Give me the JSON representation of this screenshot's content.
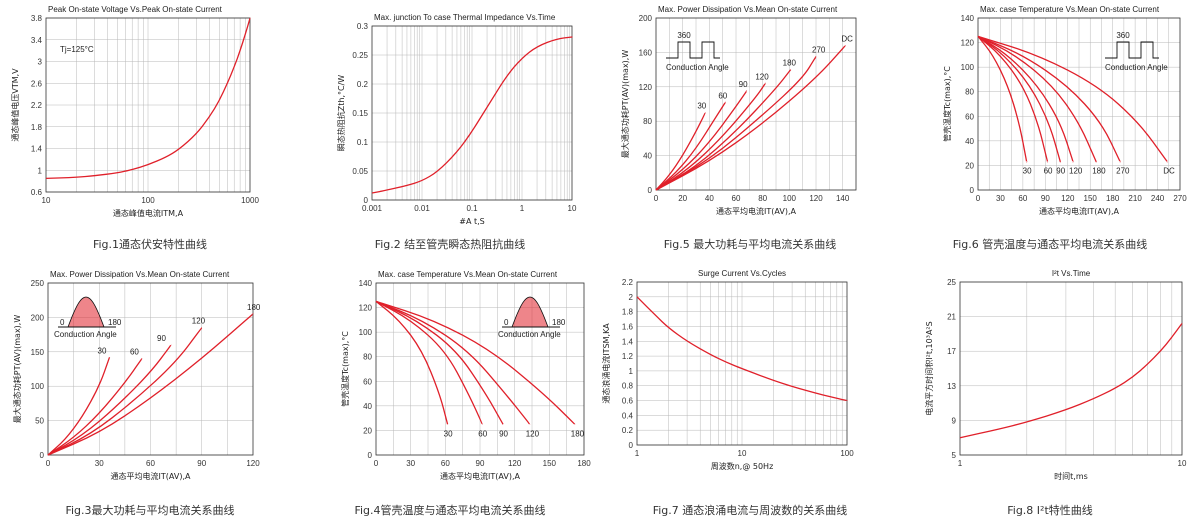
{
  "colors": {
    "curve": "#e0202a",
    "grid": "#b8b8b8",
    "frame": "#333333",
    "text": "#222222"
  },
  "chart_data": [
    {
      "id": "fig1",
      "type": "line",
      "title": "Peak On-state Voltage Vs.Peak On-state Current",
      "caption": "Fig.1通态伏安特性曲线",
      "xlabel": "通态峰值电流ITM,A",
      "ylabel": "通态峰值电压VTM,V",
      "annotation": "Tj=125°C",
      "xscale": "log",
      "xlim": [
        10,
        1000
      ],
      "ylim": [
        0.6,
        3.8
      ],
      "grid": true,
      "xticks": [
        10,
        100,
        1000
      ],
      "yticks": [
        0.6,
        1,
        1.4,
        1.8,
        2.2,
        2.6,
        3,
        3.4,
        3.8
      ],
      "series": [
        {
          "x": [
            10,
            20,
            30,
            50,
            70,
            100,
            150,
            200,
            300,
            400,
            500,
            600,
            700,
            800,
            900,
            1000
          ],
          "y": [
            0.85,
            0.87,
            0.9,
            0.95,
            1.01,
            1.1,
            1.24,
            1.38,
            1.67,
            1.98,
            2.28,
            2.6,
            2.9,
            3.2,
            3.5,
            3.8
          ]
        }
      ]
    },
    {
      "id": "fig2",
      "type": "line",
      "title": "Max. junction To case Thermal Impedance Vs.Time",
      "caption": "Fig.2 结至管壳瞬态热阻抗曲线",
      "xlabel": "#A t,S",
      "ylabel": "瞬态热阻抗Zth,°C/W",
      "xscale": "log",
      "xlim": [
        0.001,
        10
      ],
      "ylim": [
        0,
        0.3
      ],
      "grid": true,
      "xticks": [
        0.001,
        0.01,
        0.1,
        1,
        10
      ],
      "yticks": [
        0,
        0.05,
        0.1,
        0.15,
        0.2,
        0.25,
        0.3
      ],
      "series": [
        {
          "x": [
            0.001,
            0.002,
            0.005,
            0.01,
            0.02,
            0.05,
            0.1,
            0.2,
            0.5,
            1,
            2,
            5,
            10
          ],
          "y": [
            0.012,
            0.017,
            0.025,
            0.033,
            0.048,
            0.082,
            0.118,
            0.16,
            0.215,
            0.245,
            0.265,
            0.278,
            0.281
          ]
        }
      ]
    },
    {
      "id": "fig5",
      "type": "line",
      "title": "Max. Power Dissipation Vs.Mean On-state Current",
      "caption": "Fig.5 最大功耗与平均电流关系曲线",
      "xlabel": "通态平均电流IT(AV),A",
      "ylabel": "最大通态功耗PT(AV)(max),W",
      "inset": {
        "label": "Conduction Angle",
        "angle": "360"
      },
      "xlim": [
        0,
        150
      ],
      "ylim": [
        0,
        200
      ],
      "grid": true,
      "xticks": [
        0,
        20,
        40,
        60,
        80,
        100,
        120,
        140
      ],
      "yticks": [
        0,
        40,
        80,
        120,
        160,
        200
      ],
      "series": [
        {
          "name": "30",
          "x": [
            0,
            10,
            20,
            30,
            37
          ],
          "y": [
            0,
            17,
            40,
            68,
            90
          ]
        },
        {
          "name": "60",
          "x": [
            0,
            15,
            30,
            45,
            52
          ],
          "y": [
            0,
            20,
            48,
            85,
            102
          ]
        },
        {
          "name": "90",
          "x": [
            0,
            20,
            40,
            60,
            68
          ],
          "y": [
            0,
            23,
            55,
            97,
            115
          ]
        },
        {
          "name": "120",
          "x": [
            0,
            25,
            50,
            75,
            82
          ],
          "y": [
            0,
            25,
            62,
            108,
            124
          ]
        },
        {
          "name": "180",
          "x": [
            0,
            30,
            60,
            90,
            101
          ],
          "y": [
            0,
            27,
            68,
            118,
            140
          ]
        },
        {
          "name": "270",
          "x": [
            0,
            40,
            80,
            110,
            120
          ],
          "y": [
            0,
            35,
            87,
            130,
            155
          ]
        },
        {
          "name": "DC",
          "x": [
            0,
            40,
            80,
            120,
            142
          ],
          "y": [
            0,
            33,
            77,
            130,
            168
          ]
        }
      ]
    },
    {
      "id": "fig6",
      "type": "line",
      "title": "Max. case Temperature Vs.Mean On-state Current",
      "caption": "Fig.6 管壳温度与通态平均电流关系曲线",
      "xlabel": "通态平均电流IT(AV),A",
      "ylabel": "管壳温度Tc(max),°C",
      "inset": {
        "label": "Conduction Angle",
        "angle": "360"
      },
      "xlim": [
        0,
        270
      ],
      "ylim": [
        0,
        140
      ],
      "grid": true,
      "xticks": [
        0,
        30,
        60,
        90,
        120,
        150,
        180,
        210,
        240,
        270
      ],
      "yticks": [
        0,
        20,
        40,
        60,
        80,
        100,
        120,
        140
      ],
      "series": [
        {
          "name": "30",
          "x": [
            0,
            20,
            40,
            55,
            65
          ],
          "y": [
            125,
            110,
            85,
            55,
            23
          ]
        },
        {
          "name": "60",
          "x": [
            0,
            30,
            60,
            80,
            93
          ],
          "y": [
            125,
            110,
            85,
            55,
            23
          ]
        },
        {
          "name": "90",
          "x": [
            0,
            35,
            70,
            95,
            110
          ],
          "y": [
            125,
            110,
            85,
            55,
            23
          ]
        },
        {
          "name": "120",
          "x": [
            0,
            40,
            80,
            110,
            127
          ],
          "y": [
            125,
            110,
            85,
            55,
            23
          ]
        },
        {
          "name": "180",
          "x": [
            0,
            50,
            100,
            135,
            158
          ],
          "y": [
            125,
            110,
            85,
            55,
            23
          ]
        },
        {
          "name": "270",
          "x": [
            0,
            60,
            120,
            165,
            190
          ],
          "y": [
            125,
            110,
            85,
            55,
            23
          ]
        },
        {
          "name": "DC",
          "x": [
            0,
            80,
            160,
            215,
            253
          ],
          "y": [
            125,
            110,
            85,
            55,
            23
          ]
        }
      ]
    },
    {
      "id": "fig3",
      "type": "line",
      "title": "Max. Power Dissipation Vs.Mean On-state Current",
      "caption": "Fig.3最大功耗与平均电流关系曲线",
      "xlabel": "通态平均电流IT(AV),A",
      "ylabel": "最大通态功耗PT(AV)(max),W",
      "inset": {
        "label": "Conduction Angle",
        "angle_start": "0",
        "angle_end": "180"
      },
      "xlim": [
        0,
        120
      ],
      "ylim": [
        0,
        250
      ],
      "grid": true,
      "xticks": [
        0,
        30,
        60,
        90,
        120
      ],
      "yticks": [
        0,
        50,
        100,
        150,
        200,
        250
      ],
      "series": [
        {
          "name": "30",
          "x": [
            0,
            10,
            20,
            30,
            36
          ],
          "y": [
            0,
            22,
            55,
            100,
            142
          ]
        },
        {
          "name": "60",
          "x": [
            0,
            15,
            30,
            45,
            55
          ],
          "y": [
            0,
            25,
            60,
            105,
            140
          ]
        },
        {
          "name": "90",
          "x": [
            0,
            20,
            40,
            60,
            72
          ],
          "y": [
            0,
            28,
            70,
            120,
            160
          ]
        },
        {
          "name": "120",
          "x": [
            0,
            25,
            50,
            75,
            90
          ],
          "y": [
            0,
            30,
            78,
            135,
            185
          ]
        },
        {
          "name": "180",
          "x": [
            0,
            30,
            60,
            90,
            120
          ],
          "y": [
            0,
            32,
            82,
            140,
            205
          ]
        }
      ]
    },
    {
      "id": "fig4",
      "type": "line",
      "title": "Max. case Temperature Vs.Mean On-state Current",
      "caption": "Fig.4管壳温度与通态平均电流关系曲线",
      "xlabel": "通态平均电流IT(AV),A",
      "ylabel": "管壳温度Tc(max),°C",
      "inset": {
        "label": "Conduction Angle",
        "angle_start": "0",
        "angle_end": "180"
      },
      "xlim": [
        0,
        180
      ],
      "ylim": [
        0,
        140
      ],
      "grid": true,
      "xticks": [
        0,
        30,
        60,
        90,
        120,
        150,
        180
      ],
      "yticks": [
        0,
        20,
        40,
        60,
        80,
        100,
        120,
        140
      ],
      "series": [
        {
          "name": "30",
          "x": [
            0,
            20,
            40,
            55,
            62
          ],
          "y": [
            125,
            110,
            85,
            50,
            25
          ]
        },
        {
          "name": "60",
          "x": [
            0,
            30,
            60,
            80,
            92
          ],
          "y": [
            125,
            110,
            85,
            50,
            25
          ]
        },
        {
          "name": "90",
          "x": [
            0,
            35,
            70,
            95,
            110
          ],
          "y": [
            125,
            110,
            85,
            50,
            25
          ]
        },
        {
          "name": "120",
          "x": [
            0,
            40,
            80,
            112,
            133
          ],
          "y": [
            125,
            110,
            85,
            50,
            25
          ]
        },
        {
          "name": "180",
          "x": [
            0,
            50,
            100,
            145,
            172
          ],
          "y": [
            125,
            110,
            85,
            50,
            25
          ]
        }
      ]
    },
    {
      "id": "fig7",
      "type": "line",
      "title": "Surge Current Vs.Cycles",
      "caption": "Fig.7 通态浪涌电流与周波数的关系曲线",
      "xlabel": "周波数n,@ 50Hz",
      "ylabel": "通态浪涌电流ITSM,KA",
      "xscale": "log",
      "xlim": [
        1,
        100
      ],
      "ylim": [
        0,
        2.2
      ],
      "grid": true,
      "xticks": [
        1,
        10,
        100
      ],
      "yticks": [
        0,
        0.2,
        0.4,
        0.6,
        0.8,
        1,
        1.2,
        1.4,
        1.6,
        1.8,
        2,
        2.2
      ],
      "series": [
        {
          "x": [
            1,
            1.5,
            2,
            3,
            5,
            7,
            10,
            20,
            30,
            50,
            70,
            100
          ],
          "y": [
            2.0,
            1.75,
            1.58,
            1.4,
            1.22,
            1.12,
            1.03,
            0.87,
            0.79,
            0.7,
            0.65,
            0.6
          ]
        }
      ]
    },
    {
      "id": "fig8",
      "type": "line",
      "title": "I²t  Vs.Time",
      "caption": "Fig.8 I²t特性曲线",
      "xlabel": "时间t,ms",
      "ylabel": "电流平方时间积I²t,10³A²S",
      "xscale": "log",
      "xlim": [
        1,
        10
      ],
      "ylim": [
        5,
        25
      ],
      "grid": true,
      "xticks": [
        1,
        10
      ],
      "yticks": [
        5,
        9,
        13,
        17,
        21,
        25
      ],
      "series": [
        {
          "x": [
            1,
            1.5,
            2,
            3,
            4,
            5,
            6,
            7,
            8,
            9,
            10
          ],
          "y": [
            7.0,
            8.0,
            8.8,
            10.2,
            11.5,
            12.7,
            14.0,
            15.5,
            17.0,
            18.6,
            20.2
          ]
        }
      ]
    }
  ]
}
